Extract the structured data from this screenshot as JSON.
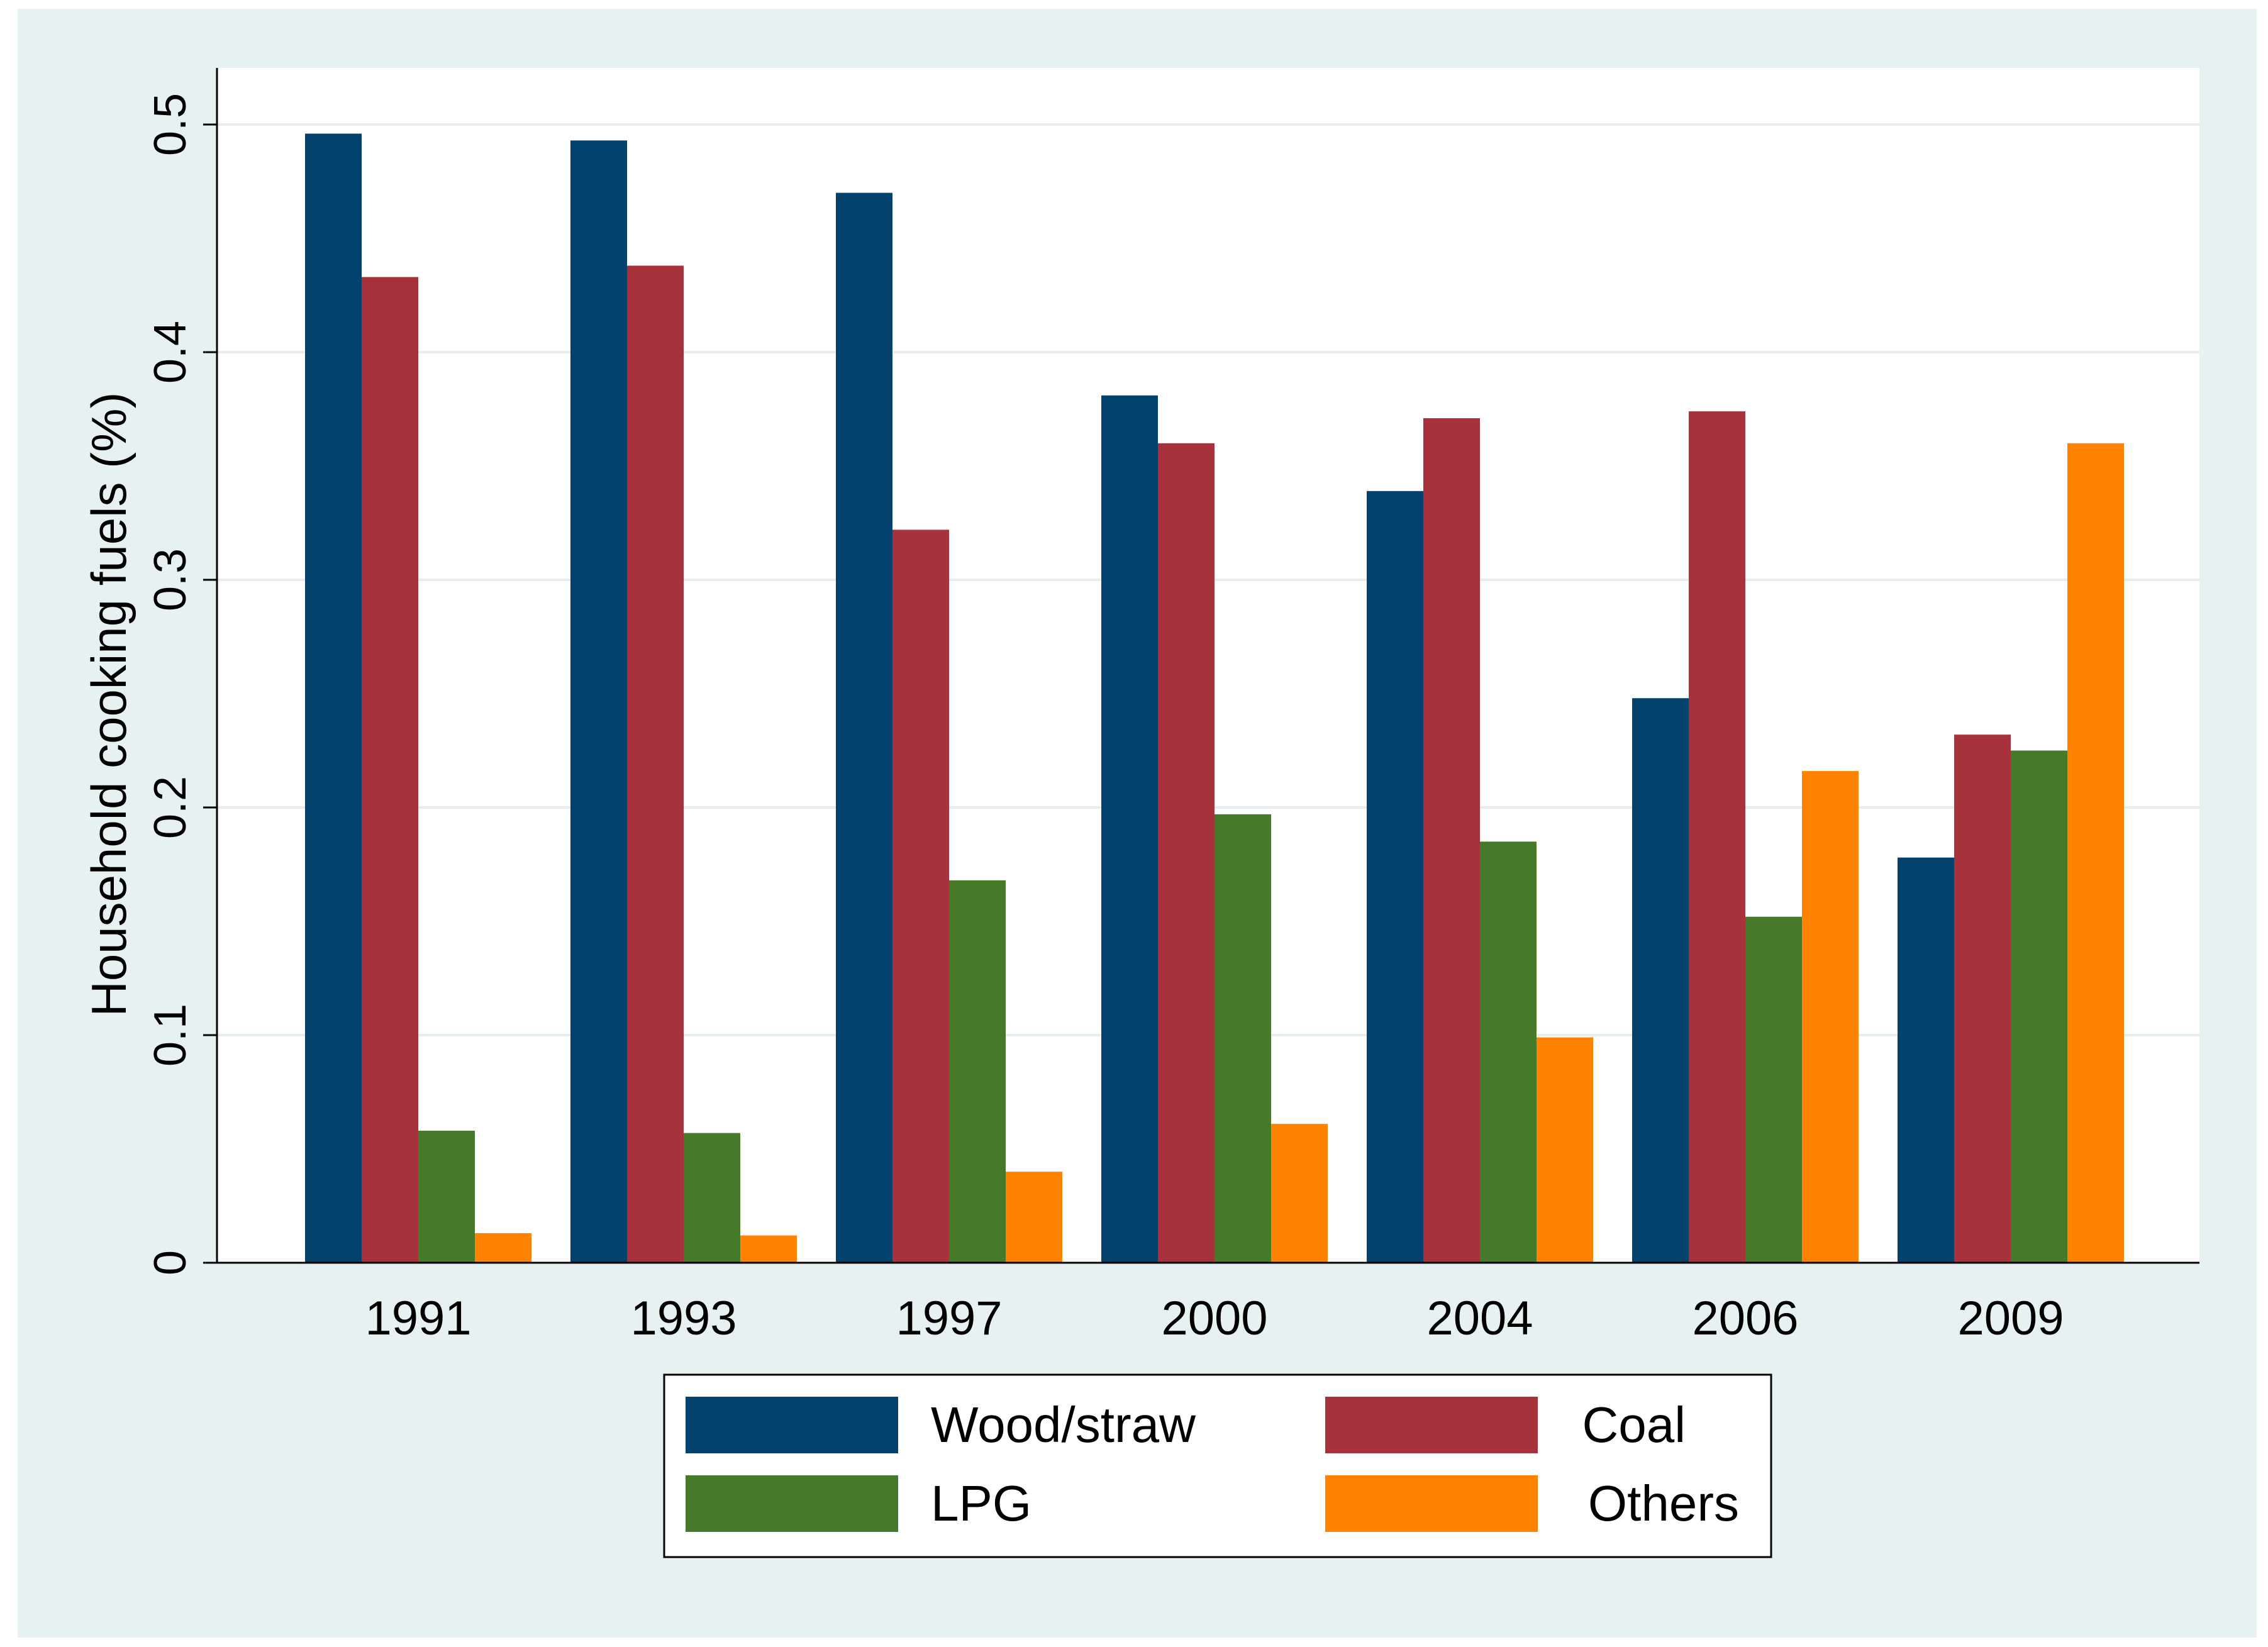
{
  "chart_data": {
    "type": "bar",
    "title": "",
    "xlabel": "",
    "ylabel": "Household cooking fuels (%)",
    "ylim": [
      0,
      0.5
    ],
    "yticks": [
      "0",
      "0.1",
      "0.2",
      "0.3",
      "0.4",
      "0.5"
    ],
    "ytick_values": [
      0,
      0.1,
      0.2,
      0.3,
      0.4,
      0.5
    ],
    "grid": true,
    "legend_position": "bottom",
    "categories": [
      "1991",
      "1993",
      "1997",
      "2000",
      "2004",
      "2006",
      "2009"
    ],
    "series": [
      {
        "name": "Wood/straw",
        "color": "#02426d",
        "values": [
          0.496,
          0.493,
          0.47,
          0.381,
          0.339,
          0.248,
          0.178
        ]
      },
      {
        "name": "Coal",
        "color": "#a8323c",
        "values": [
          0.433,
          0.438,
          0.322,
          0.36,
          0.371,
          0.374,
          0.232
        ]
      },
      {
        "name": "LPG",
        "color": "#447a2a",
        "values": [
          0.058,
          0.057,
          0.168,
          0.197,
          0.185,
          0.152,
          0.225
        ]
      },
      {
        "name": "Others",
        "color": "#ff8200",
        "values": [
          0.013,
          0.012,
          0.04,
          0.061,
          0.099,
          0.216,
          0.36
        ]
      }
    ]
  },
  "colors": {
    "outer_background": "#e8f1f2",
    "plot_background": "#ffffff",
    "grid": "#e6eef0",
    "axis": "#000000"
  }
}
